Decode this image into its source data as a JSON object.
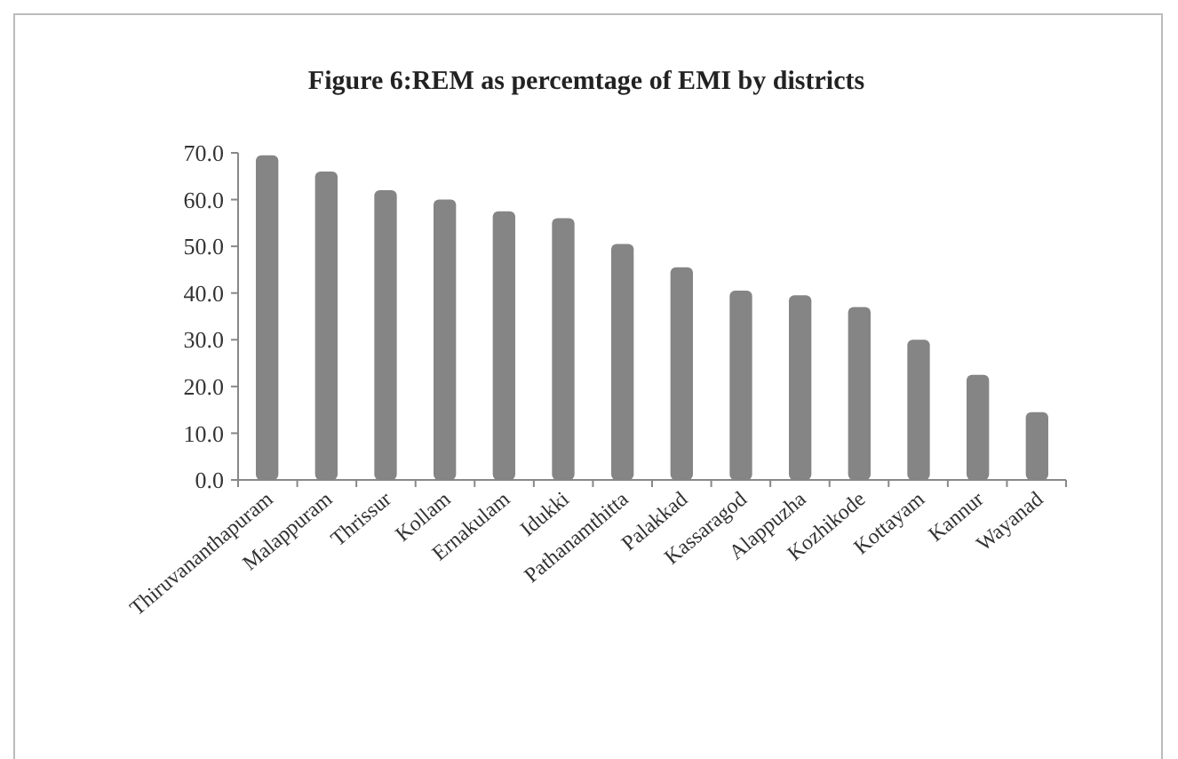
{
  "chart_data": {
    "type": "bar",
    "title": "Figure 6:REM as percemtage of EMI by districts",
    "categories": [
      "Thiruvananthapuram",
      "Malappuram",
      "Thrissur",
      "Kollam",
      "Ernakulam",
      "Idukki",
      "Pathanamthitta",
      "Palakkad",
      "Kassaragod",
      "Alappuzha",
      "Kozhikode",
      "Kottayam",
      "Kannur",
      "Wayanad"
    ],
    "values": [
      69.5,
      66,
      62,
      60,
      57.5,
      56,
      50.5,
      45.5,
      40.5,
      39.5,
      37,
      30,
      22.5,
      14.5
    ],
    "color": "#858585",
    "ylim": [
      0,
      70
    ],
    "yticks": [
      {
        "value": 0,
        "label": "0.0"
      },
      {
        "value": 10,
        "label": "10.0"
      },
      {
        "value": 20,
        "label": "20.0"
      },
      {
        "value": 30,
        "label": "30.0"
      },
      {
        "value": 40,
        "label": "40.0"
      },
      {
        "value": 50,
        "label": "50.0"
      },
      {
        "value": 60,
        "label": "60.0"
      },
      {
        "value": 70,
        "label": "70.0"
      }
    ],
    "grid": false
  }
}
